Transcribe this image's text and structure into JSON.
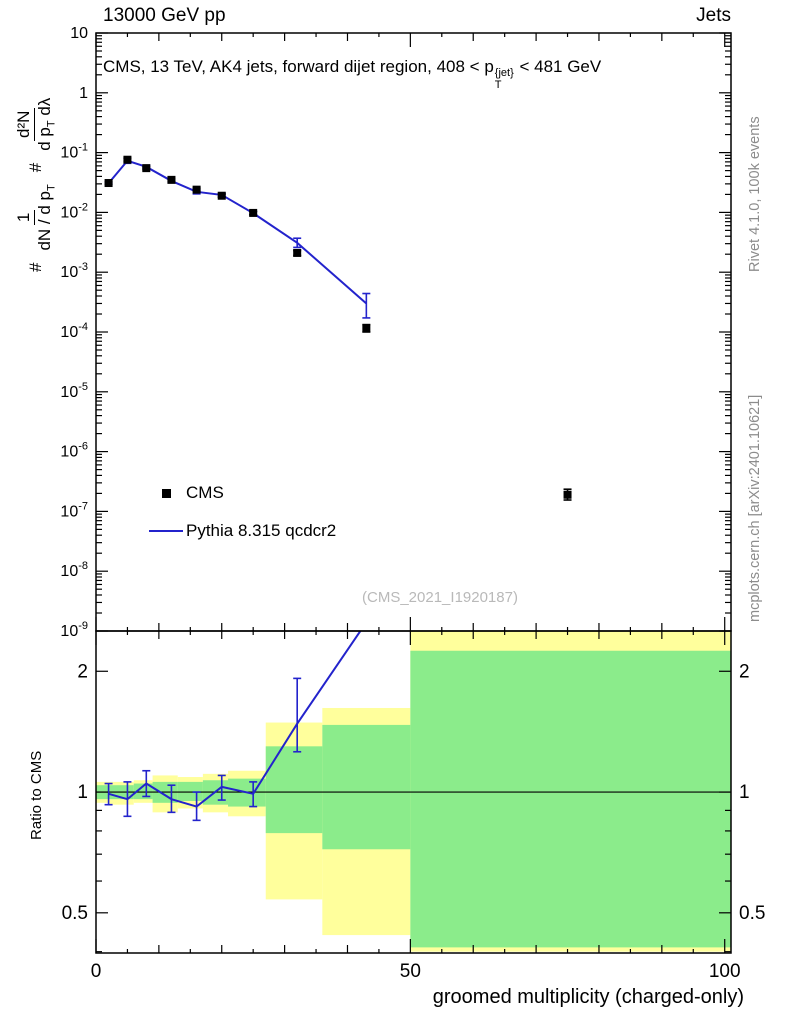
{
  "header": {
    "left": "13000 GeV pp",
    "right": "Jets"
  },
  "panel_title": {
    "prefix": "CMS, 13 TeV, AK4 jets, forward dijet region, 408 < ",
    "p": "p",
    "sup": "{jet}",
    "sub": "T",
    "suffix": " < 481 GeV",
    "full": "CMS, 13 TeV, AK4 jets, forward dijet region, 408 < pT{jet} < 481 GeV"
  },
  "watermark": "(CMS_2021_I1920187)",
  "side_notes": {
    "top": "Rivet 4.1.0, 100k events",
    "bottom": "mcplots.cern.ch [arXiv:2401.10621]"
  },
  "axes": {
    "main_ylabel": {
      "hash1": "#",
      "f1_num": "1",
      "f1_den": "dN / d p",
      "f1_den_sub": "T",
      "hash2": "#",
      "f2_num": "d²N",
      "f2_den": "d p",
      "f2_den_sub": "T",
      "f2_den_tail": " dλ"
    }
  },
  "legend": {
    "items": [
      {
        "label": "CMS",
        "marker": "square",
        "color": "#000000"
      },
      {
        "label": "Pythia 8.315 qcdcr2",
        "marker": "line",
        "color": "#2323cc"
      }
    ]
  },
  "colors": {
    "pythia": "#2323cc",
    "band_green": "#8bec8b",
    "band_yellow": "#ffff9c",
    "watermark": "#b9b9b9",
    "note": "#8c8c8c",
    "frame": "#000000"
  },
  "chart_data": [
    {
      "type": "scatter",
      "title": "CMS, 13 TeV, AK4 jets, forward dijet region, 408 < pT{jet} < 481 GeV",
      "ylabel": "# 1/(dN/dpT) d²N/(dpT dλ)",
      "xlabel": "groomed multiplicity (charged-only)",
      "xlim": [
        0,
        101
      ],
      "ylog": true,
      "ylim": [
        1e-09,
        10
      ],
      "ytick_exponents": [
        1,
        0,
        -1,
        -2,
        -3,
        -4,
        -5,
        -6,
        -7,
        -8,
        -9
      ],
      "xticks_major": [
        0,
        50,
        100
      ],
      "xtick_minor_step": 5,
      "legend_position": "middle-left",
      "grid": false,
      "series": [
        {
          "name": "CMS",
          "type": "points",
          "color": "#000000",
          "x": [
            2,
            5,
            8,
            12,
            16,
            20,
            25,
            32,
            43,
            75
          ],
          "y": [
            0.031,
            0.076,
            0.055,
            0.035,
            0.024,
            0.019,
            0.0098,
            0.0021,
            0.000115,
            1.9e-07
          ],
          "err_lo": [
            0.0294,
            0.0714,
            0.0522,
            0.0332,
            0.0227,
            0.0179,
            0.0092,
            0.0019,
            0.0001,
            1.55e-07
          ],
          "err_hi": [
            0.0327,
            0.0807,
            0.0579,
            0.0369,
            0.0254,
            0.0202,
            0.0104,
            0.0023,
            0.000133,
            2.35e-07
          ]
        },
        {
          "name": "Pythia 8.315 qcdcr2",
          "type": "line",
          "color": "#2323cc",
          "x": [
            2,
            5,
            8,
            12,
            16,
            20,
            25,
            32,
            43
          ],
          "y": [
            0.0307,
            0.073,
            0.0578,
            0.0336,
            0.0221,
            0.0196,
            0.0097,
            0.0031,
            0.0003
          ],
          "err_lo": [
            0.0297,
            0.0662,
            0.0547,
            0.0316,
            0.0204,
            0.0185,
            0.0091,
            0.0026,
            0.000172
          ],
          "err_hi": [
            0.0317,
            0.0801,
            0.0611,
            0.0357,
            0.0239,
            0.0208,
            0.0103,
            0.0037,
            0.00044
          ]
        }
      ]
    },
    {
      "type": "ratio",
      "ylabel": "Ratio to CMS",
      "xlabel": "groomed multiplicity (charged-only)",
      "ylog": true,
      "ylim": [
        0.397,
        2.52
      ],
      "yticks_major": [
        0.5,
        1,
        2
      ],
      "yticks_minor": [
        0.4,
        0.6,
        0.7,
        0.8,
        0.9
      ],
      "xticks_major": [
        0,
        50,
        100
      ],
      "xtick_minor_step": 5,
      "reference_value": 1,
      "bands": [
        {
          "x0": 0,
          "x1": 2,
          "yellow": [
            0.94,
            1.06
          ],
          "green": [
            0.96,
            1.04
          ]
        },
        {
          "x0": 2,
          "x1": 6,
          "yellow": [
            0.93,
            1.06
          ],
          "green": [
            0.96,
            1.04
          ]
        },
        {
          "x0": 6,
          "x1": 9,
          "yellow": [
            0.94,
            1.07
          ],
          "green": [
            0.96,
            1.05
          ]
        },
        {
          "x0": 9,
          "x1": 13,
          "yellow": [
            0.89,
            1.1
          ],
          "green": [
            0.94,
            1.06
          ]
        },
        {
          "x0": 13,
          "x1": 17,
          "yellow": [
            0.91,
            1.09
          ],
          "green": [
            0.95,
            1.06
          ]
        },
        {
          "x0": 17,
          "x1": 21,
          "yellow": [
            0.89,
            1.11
          ],
          "green": [
            0.93,
            1.07
          ]
        },
        {
          "x0": 21,
          "x1": 27,
          "yellow": [
            0.87,
            1.13
          ],
          "green": [
            0.92,
            1.08
          ]
        },
        {
          "x0": 27,
          "x1": 36,
          "yellow": [
            0.54,
            1.49
          ],
          "green": [
            0.79,
            1.3
          ]
        },
        {
          "x0": 36,
          "x1": 50,
          "yellow": [
            0.44,
            1.62
          ],
          "green": [
            0.72,
            1.47
          ]
        },
        {
          "x0": 50,
          "x1": 101,
          "yellow": [
            0.4,
            2.52
          ],
          "green": [
            0.41,
            2.25
          ]
        }
      ],
      "line": {
        "name": "Pythia 8.315 qcdcr2 / CMS",
        "color": "#2323cc",
        "x": [
          2,
          5,
          8,
          12,
          16,
          20,
          25,
          32,
          43
        ],
        "y": [
          0.99,
          0.96,
          1.05,
          0.96,
          0.92,
          1.03,
          0.99,
          1.48,
          2.65
        ],
        "err_lo": [
          0.93,
          0.87,
          0.975,
          0.89,
          0.85,
          0.955,
          0.92,
          1.26,
          0
        ],
        "err_hi": [
          1.05,
          1.06,
          1.13,
          1.04,
          1.0,
          1.1,
          1.06,
          1.92,
          0
        ]
      }
    }
  ]
}
